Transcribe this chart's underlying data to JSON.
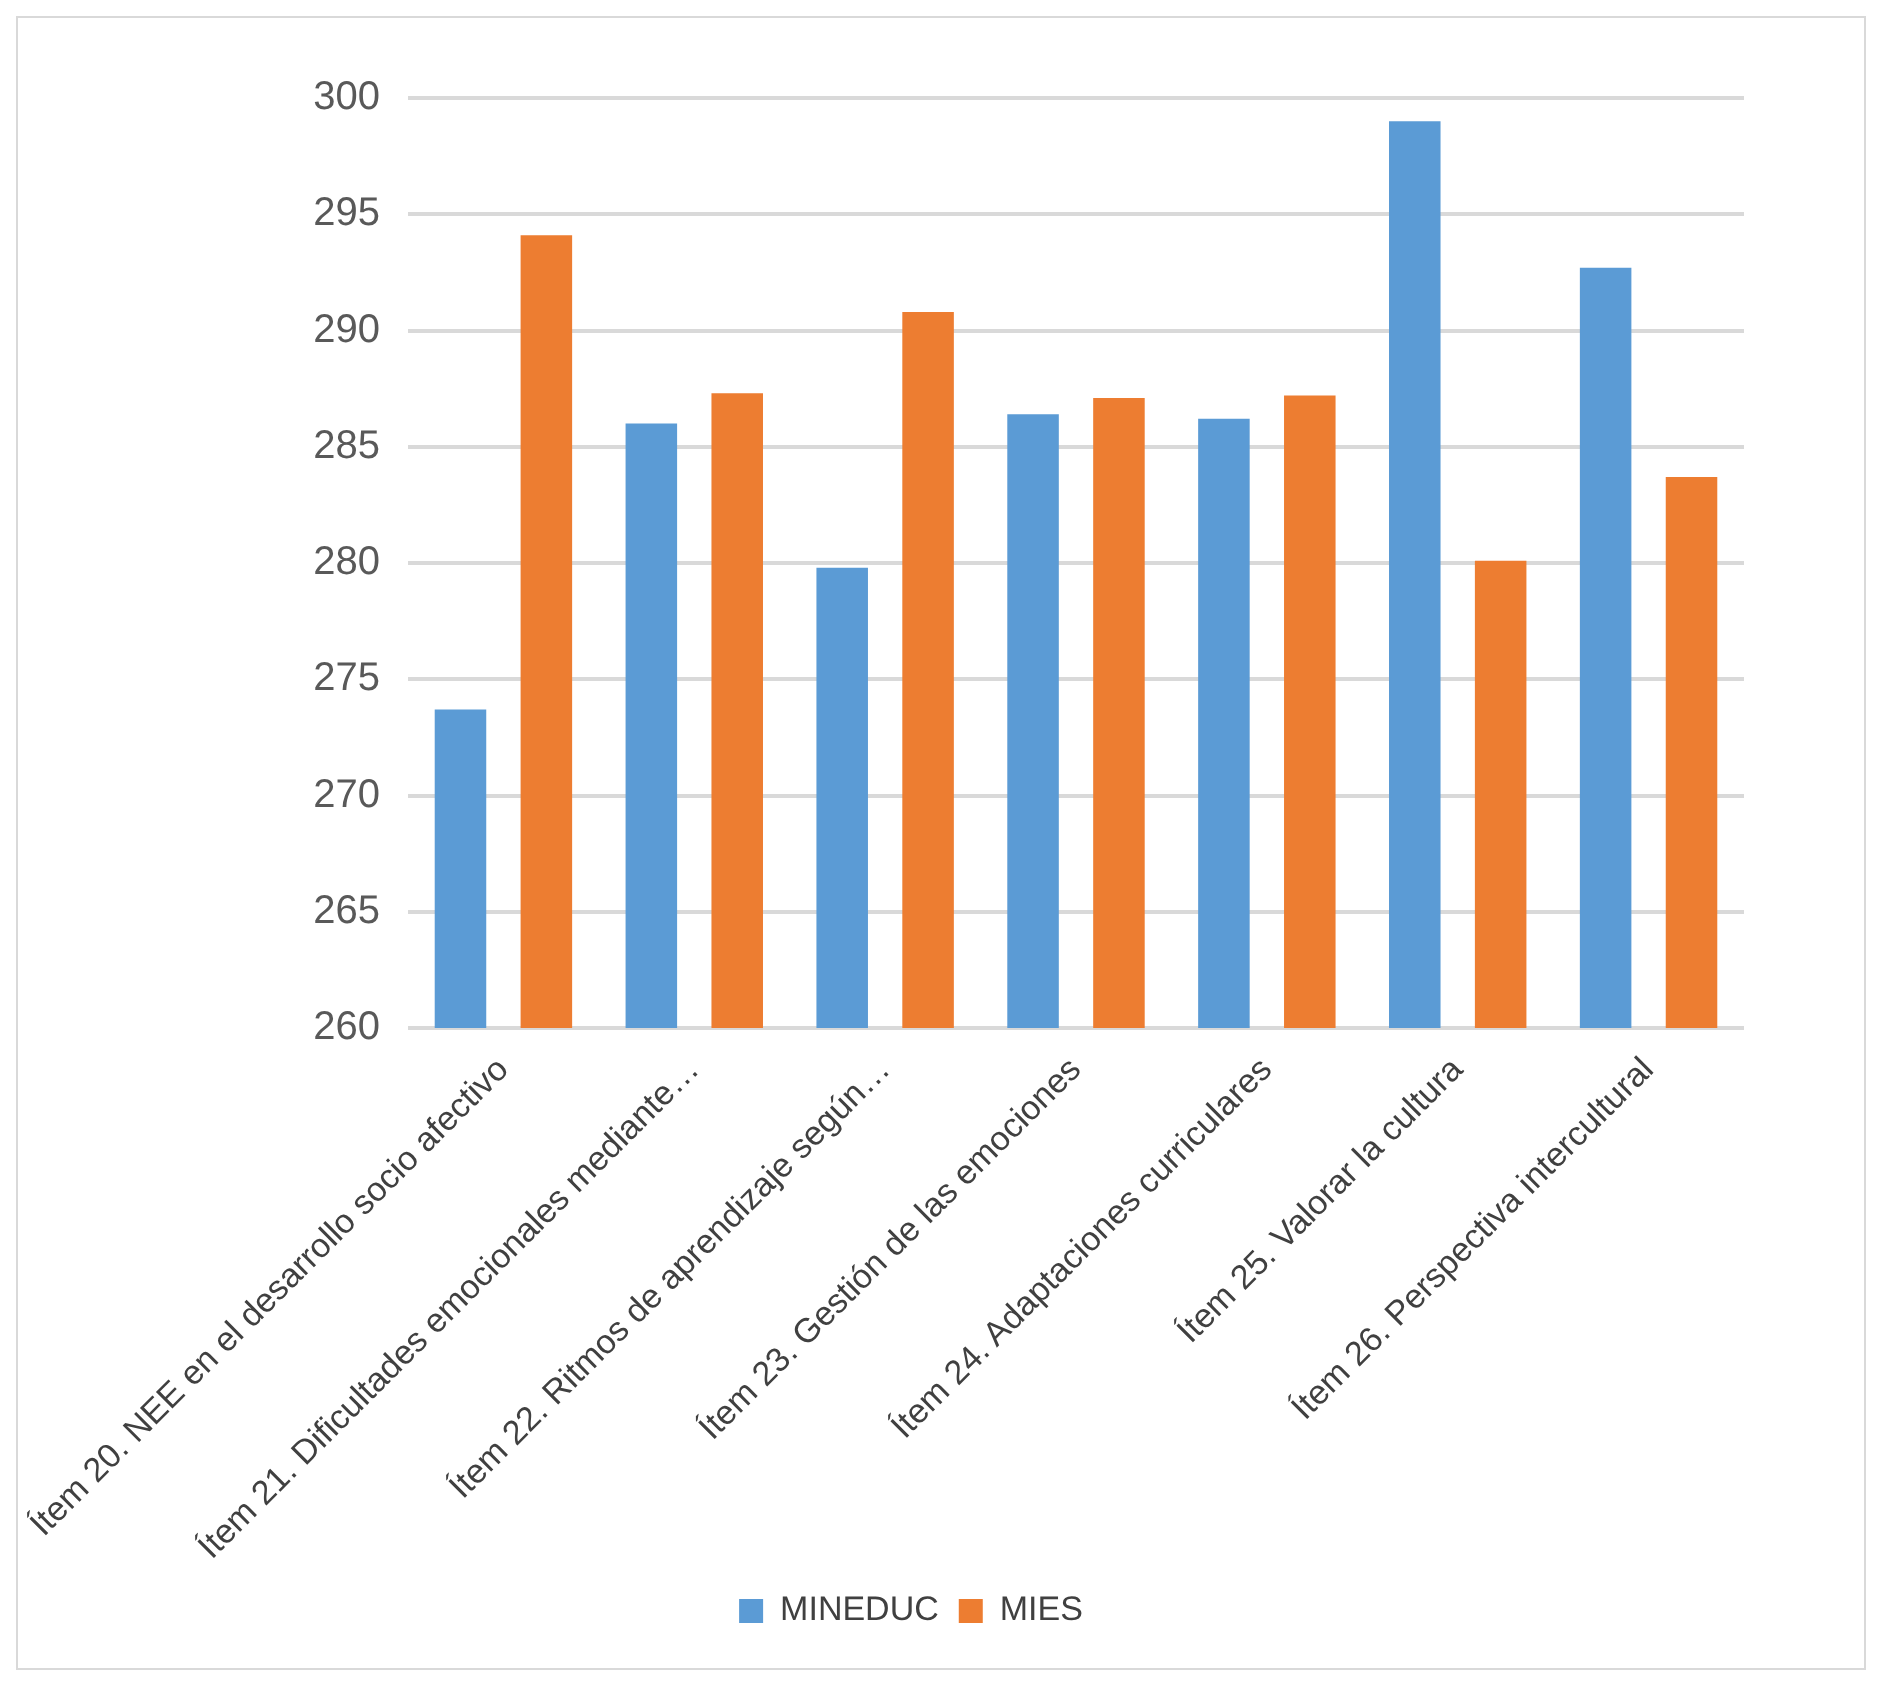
{
  "chart_data": {
    "type": "bar",
    "categories": [
      "Ítem 20. NEE en el desarrollo socio afectivo",
      "Ítem 21. Dificultades emocionales mediante…",
      "Ítem 22. Ritmos de aprendizaje según…",
      "Ítem 23. Gestión de las emociones",
      "Ítem 24. Adaptaciones curriculares",
      "Ítem 25. Valorar la cultura",
      "Ítem 26. Perspectiva intercultural"
    ],
    "series": [
      {
        "name": "MINEDUC",
        "color": "#5b9bd5",
        "values": [
          273.7,
          286,
          279.8,
          286.4,
          286.2,
          299,
          292.7
        ]
      },
      {
        "name": "MIES",
        "color": "#ed7d31",
        "values": [
          294.1,
          287.3,
          290.8,
          287.1,
          287.2,
          280.1,
          283.7
        ]
      }
    ],
    "ylim": [
      260,
      300
    ],
    "yticks": [
      260,
      265,
      270,
      275,
      280,
      285,
      290,
      295,
      300
    ],
    "grid": "y",
    "legend": "bottom"
  }
}
